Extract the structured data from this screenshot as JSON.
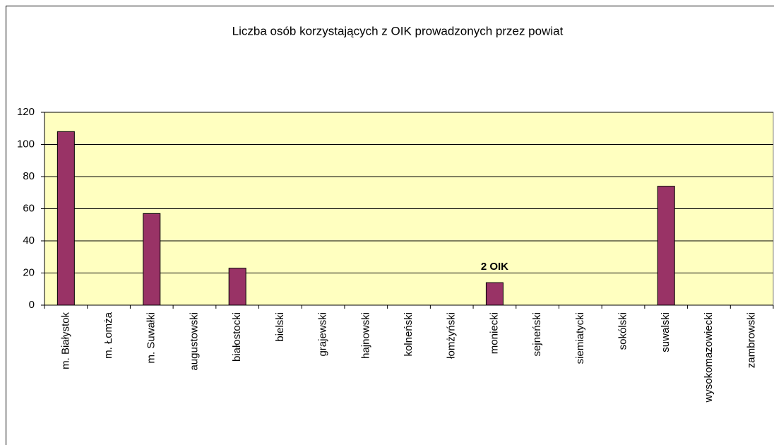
{
  "chart_data": {
    "type": "bar",
    "title": "Liczba osób korzystających z OIK prowadzonych przez powiat",
    "categories": [
      "m. Białystok",
      "m. Łomża",
      "m. Suwałki",
      "augustowski",
      "białostocki",
      "bielski",
      "grajewski",
      "hajnowski",
      "kolneński",
      "łomżyński",
      "moniecki",
      "sejneński",
      "siemiatycki",
      "sokólski",
      "suwalski",
      "wysokomazowiecki",
      "zambrowski"
    ],
    "values": [
      108,
      0,
      57,
      0,
      23,
      0,
      0,
      0,
      0,
      0,
      14,
      0,
      0,
      0,
      74,
      0,
      0
    ],
    "color": "#993366",
    "plot_background": "#ffffc0",
    "ylim": [
      0,
      120
    ],
    "yticks": [
      0,
      20,
      40,
      60,
      80,
      100,
      120
    ],
    "grid": true,
    "annotations": [
      {
        "text": "2 OIK",
        "category": "moniecki"
      }
    ]
  }
}
